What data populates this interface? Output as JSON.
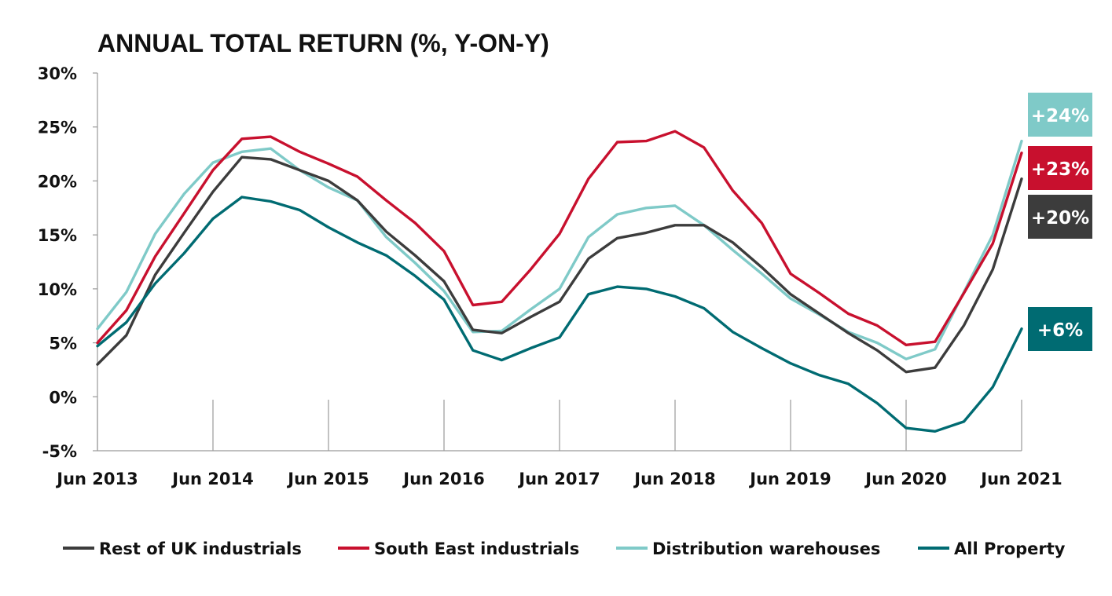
{
  "chart_data": {
    "type": "line",
    "title": "ANNUAL TOTAL RETURN (%, Y-ON-Y)",
    "xlabel": "",
    "ylabel": "",
    "x": [
      "Jun 2013",
      "Sep 2013",
      "Dec 2013",
      "Mar 2014",
      "Jun 2014",
      "Sep 2014",
      "Dec 2014",
      "Mar 2015",
      "Jun 2015",
      "Sep 2015",
      "Dec 2015",
      "Mar 2016",
      "Jun 2016",
      "Sep 2016",
      "Dec 2016",
      "Mar 2017",
      "Jun 2017",
      "Sep 2017",
      "Dec 2017",
      "Mar 2018",
      "Jun 2018",
      "Sep 2018",
      "Dec 2018",
      "Mar 2019",
      "Jun 2019",
      "Sep 2019",
      "Dec 2019",
      "Mar 2020",
      "Jun 2020",
      "Sep 2020",
      "Dec 2020",
      "Mar 2021",
      "Jun 2021"
    ],
    "x_tick_labels": [
      "Jun 2013",
      "Jun 2014",
      "Jun 2015",
      "Jun 2016",
      "Jun 2017",
      "Jun 2018",
      "Jun 2019",
      "Jun 2020",
      "Jun 2021"
    ],
    "y_tick_labels": [
      "30%",
      "25%",
      "20%",
      "15%",
      "10%",
      "5%",
      "0%",
      "-5%"
    ],
    "ylim": [
      -5,
      30
    ],
    "y_ticks": [
      30,
      25,
      20,
      15,
      10,
      5,
      0,
      -5
    ],
    "grid": false,
    "legend_position": "bottom",
    "series": [
      {
        "name": "Rest of UK industrials",
        "color": "#3c3c3c",
        "values": [
          3.0,
          5.7,
          11.3,
          15.2,
          19.0,
          22.2,
          22.0,
          21.0,
          20.0,
          18.2,
          15.3,
          13.1,
          10.7,
          6.2,
          5.9,
          7.4,
          8.8,
          12.8,
          14.7,
          15.2,
          15.9,
          15.9,
          14.3,
          12.0,
          9.5,
          7.7,
          5.9,
          4.3,
          2.3,
          2.7,
          6.6,
          11.8,
          20.2
        ]
      },
      {
        "name": "South East industrials",
        "color": "#c8102e",
        "values": [
          5.0,
          8.0,
          13.0,
          17.0,
          21.0,
          23.9,
          24.1,
          22.7,
          21.6,
          20.4,
          18.2,
          16.1,
          13.5,
          8.5,
          8.8,
          11.8,
          15.1,
          20.2,
          23.6,
          23.7,
          24.6,
          23.1,
          19.1,
          16.1,
          11.4,
          9.6,
          7.7,
          6.6,
          4.8,
          5.1,
          9.6,
          14.2,
          22.6
        ]
      },
      {
        "name": "Distribution warehouses",
        "color": "#7fcac8",
        "values": [
          6.3,
          9.7,
          15.1,
          18.8,
          21.7,
          22.7,
          23.0,
          21.0,
          19.4,
          18.2,
          14.8,
          12.4,
          9.8,
          6.0,
          6.1,
          8.1,
          10.0,
          14.8,
          16.9,
          17.5,
          17.7,
          15.9,
          13.6,
          11.4,
          9.1,
          7.6,
          6.0,
          5.0,
          3.5,
          4.4,
          9.7,
          15.0,
          23.7
        ]
      },
      {
        "name": "All Property",
        "color": "#006b72",
        "values": [
          4.7,
          6.9,
          10.5,
          13.3,
          16.5,
          18.5,
          18.1,
          17.3,
          15.7,
          14.3,
          13.1,
          11.2,
          9.0,
          4.3,
          3.4,
          4.5,
          5.5,
          9.5,
          10.2,
          10.0,
          9.3,
          8.2,
          6.0,
          4.5,
          3.1,
          2.0,
          1.2,
          -0.6,
          -2.9,
          -3.2,
          -2.3,
          0.9,
          6.3
        ]
      }
    ],
    "end_labels": [
      {
        "text": "+24%",
        "color": "#7fcac8"
      },
      {
        "text": "+23%",
        "color": "#c8102e"
      },
      {
        "text": "+20%",
        "color": "#3c3c3c"
      },
      {
        "text": "+6%",
        "color": "#006b72"
      }
    ]
  }
}
